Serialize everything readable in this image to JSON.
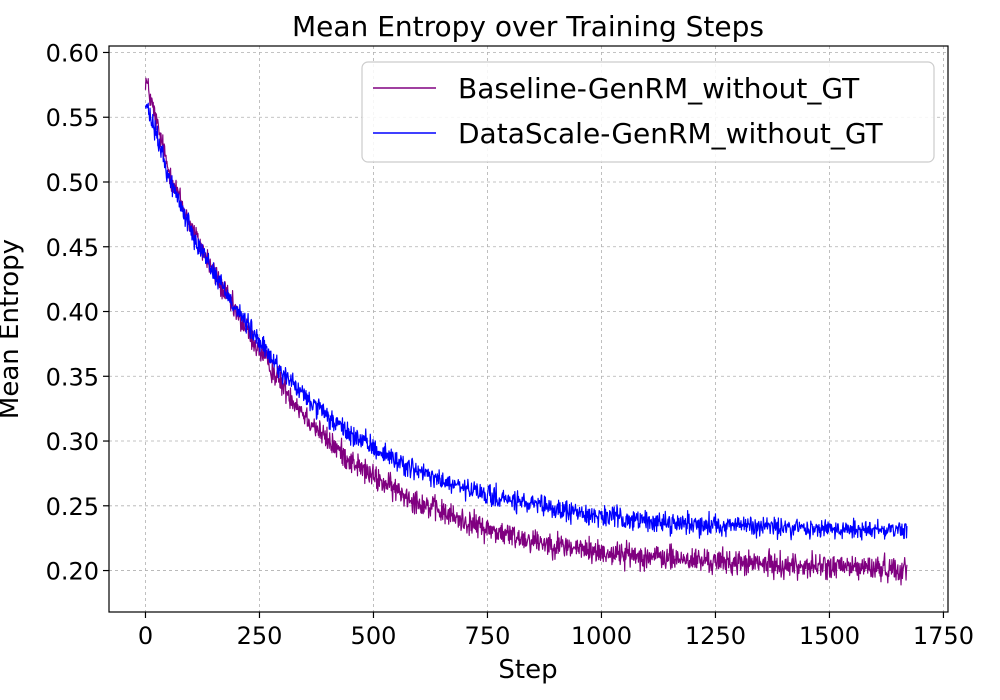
{
  "chart_data": {
    "type": "line",
    "title": "Mean Entropy over Training Steps",
    "xlabel": "Step",
    "ylabel": "Mean Entropy",
    "xlim": [
      -80,
      1760
    ],
    "ylim": [
      0.168,
      0.605
    ],
    "xticks": [
      0,
      250,
      500,
      750,
      1000,
      1250,
      1500,
      1750
    ],
    "yticks": [
      0.2,
      0.25,
      0.3,
      0.35,
      0.4,
      0.45,
      0.5,
      0.55,
      0.6
    ],
    "grid": true,
    "legend_position": "top-right",
    "steps": 1670,
    "series": [
      {
        "name": "Baseline-GenRM_without_GT",
        "color": "#800080",
        "anchors": {
          "x": [
            0,
            25,
            50,
            100,
            150,
            200,
            250,
            300,
            350,
            400,
            450,
            500,
            550,
            600,
            650,
            700,
            750,
            800,
            900,
            1000,
            1100,
            1200,
            1300,
            1400,
            1500,
            1600,
            1670
          ],
          "y": [
            0.58,
            0.545,
            0.51,
            0.465,
            0.43,
            0.398,
            0.37,
            0.343,
            0.32,
            0.3,
            0.285,
            0.272,
            0.262,
            0.253,
            0.245,
            0.238,
            0.232,
            0.227,
            0.22,
            0.214,
            0.211,
            0.208,
            0.206,
            0.204,
            0.203,
            0.202,
            0.201
          ]
        },
        "noise": 0.006
      },
      {
        "name": "DataScale-GenRM_without_GT",
        "color": "#0000ff",
        "anchors": {
          "x": [
            0,
            25,
            50,
            100,
            150,
            200,
            250,
            300,
            350,
            400,
            450,
            500,
            550,
            600,
            650,
            700,
            750,
            800,
            900,
            1000,
            1100,
            1200,
            1300,
            1400,
            1500,
            1600,
            1670
          ],
          "y": [
            0.56,
            0.535,
            0.505,
            0.463,
            0.43,
            0.402,
            0.376,
            0.353,
            0.334,
            0.318,
            0.305,
            0.295,
            0.285,
            0.276,
            0.269,
            0.263,
            0.258,
            0.254,
            0.247,
            0.242,
            0.238,
            0.236,
            0.235,
            0.233,
            0.232,
            0.232,
            0.232
          ]
        },
        "noise": 0.005
      }
    ]
  }
}
